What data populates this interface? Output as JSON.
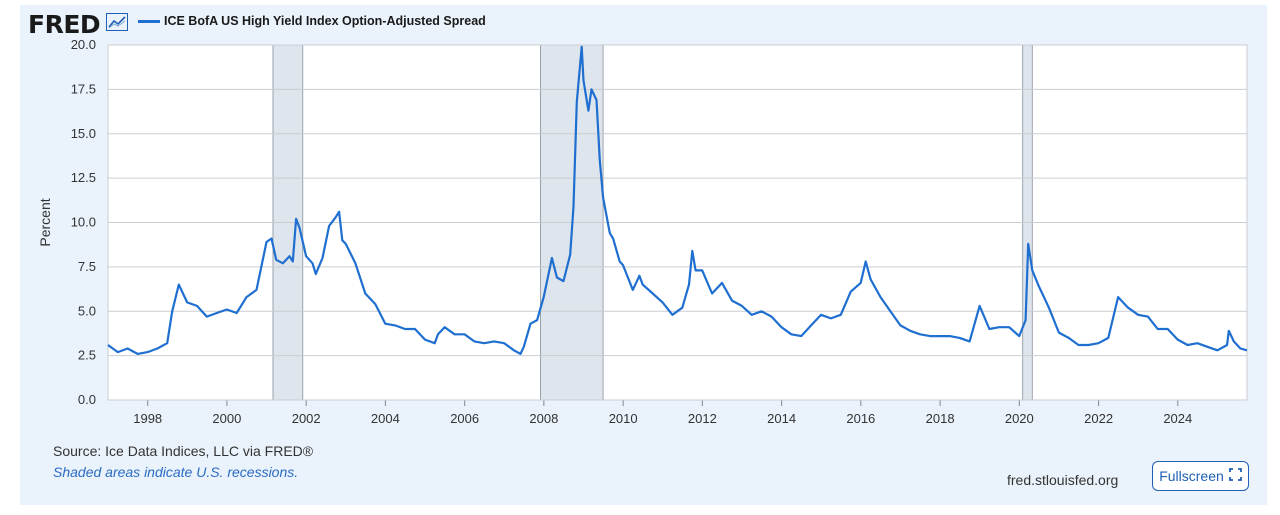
{
  "header": {
    "logo_text": "FRED",
    "logo_icon": "line-chart-icon",
    "series_title": "ICE BofA US High Yield Index Option-Adjusted Spread"
  },
  "footer": {
    "source": "Source: Ice Data Indices, LLC via FRED®",
    "recessions_note": "Shaded areas indicate U.S. recessions.",
    "site": "fred.stlouisfed.org",
    "fullscreen_label": "Fullscreen",
    "fullscreen_icon": "expand-icon"
  },
  "colors": {
    "line": "#1f6fd1",
    "recession": "#dfe5ec",
    "panel": "#eaf2fb",
    "link": "#2a6cc4"
  },
  "chart_data": {
    "type": "line",
    "title": "ICE BofA US High Yield Index Option-Adjusted Spread",
    "ylabel": "Percent",
    "xlabel": "",
    "ylim": [
      0,
      20
    ],
    "xlim": [
      "1996-12-31",
      "2025-09-30"
    ],
    "yticks": [
      "0.0",
      "2.5",
      "5.0",
      "7.5",
      "10.0",
      "12.5",
      "15.0",
      "17.5",
      "20.0"
    ],
    "xticks": [
      "1998",
      "2000",
      "2002",
      "2004",
      "2006",
      "2008",
      "2010",
      "2012",
      "2014",
      "2016",
      "2018",
      "2020",
      "2022",
      "2024"
    ],
    "grid": true,
    "legend": "top-left",
    "recessions": [
      {
        "start": "2001-03-01",
        "end": "2001-11-30"
      },
      {
        "start": "2007-12-01",
        "end": "2009-06-30"
      },
      {
        "start": "2020-02-01",
        "end": "2020-04-30"
      }
    ],
    "series": [
      {
        "name": "ICE BofA US High Yield Index Option-Adjusted Spread",
        "points": [
          [
            "1996-12-31",
            3.1
          ],
          [
            "1997-03-31",
            2.7
          ],
          [
            "1997-06-30",
            2.9
          ],
          [
            "1997-09-30",
            2.6
          ],
          [
            "1997-12-31",
            2.7
          ],
          [
            "1998-03-31",
            2.9
          ],
          [
            "1998-06-30",
            3.2
          ],
          [
            "1998-08-15",
            5.0
          ],
          [
            "1998-10-15",
            6.5
          ],
          [
            "1998-12-31",
            5.5
          ],
          [
            "1999-03-31",
            5.3
          ],
          [
            "1999-06-30",
            4.7
          ],
          [
            "1999-09-30",
            4.9
          ],
          [
            "1999-12-31",
            5.1
          ],
          [
            "2000-03-31",
            4.9
          ],
          [
            "2000-06-30",
            5.8
          ],
          [
            "2000-09-30",
            6.2
          ],
          [
            "2000-12-31",
            8.9
          ],
          [
            "2001-02-15",
            9.1
          ],
          [
            "2001-03-31",
            7.9
          ],
          [
            "2001-05-31",
            7.7
          ],
          [
            "2001-07-31",
            8.1
          ],
          [
            "2001-08-31",
            7.8
          ],
          [
            "2001-09-30",
            10.2
          ],
          [
            "2001-10-31",
            9.7
          ],
          [
            "2001-12-31",
            8.1
          ],
          [
            "2002-02-28",
            7.7
          ],
          [
            "2002-03-31",
            7.1
          ],
          [
            "2002-05-31",
            8.0
          ],
          [
            "2002-07-31",
            9.8
          ],
          [
            "2002-09-30",
            10.3
          ],
          [
            "2002-10-31",
            10.6
          ],
          [
            "2002-11-30",
            9.0
          ],
          [
            "2002-12-31",
            8.8
          ],
          [
            "2003-03-31",
            7.7
          ],
          [
            "2003-06-30",
            6.0
          ],
          [
            "2003-09-30",
            5.4
          ],
          [
            "2003-12-31",
            4.3
          ],
          [
            "2004-03-31",
            4.2
          ],
          [
            "2004-06-30",
            4.0
          ],
          [
            "2004-09-30",
            4.0
          ],
          [
            "2004-12-31",
            3.4
          ],
          [
            "2005-03-31",
            3.2
          ],
          [
            "2005-04-30",
            3.7
          ],
          [
            "2005-06-30",
            4.1
          ],
          [
            "2005-09-30",
            3.7
          ],
          [
            "2005-12-31",
            3.7
          ],
          [
            "2006-03-31",
            3.3
          ],
          [
            "2006-06-30",
            3.2
          ],
          [
            "2006-09-30",
            3.3
          ],
          [
            "2006-12-31",
            3.2
          ],
          [
            "2007-03-31",
            2.8
          ],
          [
            "2007-05-31",
            2.6
          ],
          [
            "2007-06-30",
            3.0
          ],
          [
            "2007-08-31",
            4.3
          ],
          [
            "2007-10-31",
            4.5
          ],
          [
            "2007-12-31",
            5.8
          ],
          [
            "2008-03-15",
            8.0
          ],
          [
            "2008-04-30",
            6.9
          ],
          [
            "2008-06-30",
            6.7
          ],
          [
            "2008-08-31",
            8.2
          ],
          [
            "2008-09-30",
            10.9
          ],
          [
            "2008-10-31",
            16.8
          ],
          [
            "2008-12-15",
            19.9
          ],
          [
            "2008-12-31",
            18.0
          ],
          [
            "2009-02-15",
            16.3
          ],
          [
            "2009-03-15",
            17.5
          ],
          [
            "2009-04-30",
            16.9
          ],
          [
            "2009-05-31",
            13.5
          ],
          [
            "2009-06-30",
            11.4
          ],
          [
            "2009-08-31",
            9.4
          ],
          [
            "2009-09-30",
            9.1
          ],
          [
            "2009-11-30",
            7.8
          ],
          [
            "2009-12-31",
            7.6
          ],
          [
            "2010-03-31",
            6.2
          ],
          [
            "2010-05-31",
            7.0
          ],
          [
            "2010-06-30",
            6.5
          ],
          [
            "2010-09-30",
            6.0
          ],
          [
            "2010-12-31",
            5.5
          ],
          [
            "2011-03-31",
            4.8
          ],
          [
            "2011-06-30",
            5.2
          ],
          [
            "2011-08-31",
            6.5
          ],
          [
            "2011-09-30",
            8.4
          ],
          [
            "2011-10-31",
            7.3
          ],
          [
            "2011-12-31",
            7.3
          ],
          [
            "2012-03-31",
            6.0
          ],
          [
            "2012-06-30",
            6.6
          ],
          [
            "2012-09-30",
            5.6
          ],
          [
            "2012-12-31",
            5.3
          ],
          [
            "2013-03-31",
            4.8
          ],
          [
            "2013-06-30",
            5.0
          ],
          [
            "2013-09-30",
            4.7
          ],
          [
            "2013-12-31",
            4.1
          ],
          [
            "2014-03-31",
            3.7
          ],
          [
            "2014-06-30",
            3.6
          ],
          [
            "2014-09-30",
            4.2
          ],
          [
            "2014-12-31",
            4.8
          ],
          [
            "2015-03-31",
            4.6
          ],
          [
            "2015-06-30",
            4.8
          ],
          [
            "2015-09-30",
            6.1
          ],
          [
            "2015-12-31",
            6.6
          ],
          [
            "2016-02-15",
            7.8
          ],
          [
            "2016-03-31",
            6.8
          ],
          [
            "2016-06-30",
            5.8
          ],
          [
            "2016-09-30",
            5.0
          ],
          [
            "2016-12-31",
            4.2
          ],
          [
            "2017-03-31",
            3.9
          ],
          [
            "2017-06-30",
            3.7
          ],
          [
            "2017-09-30",
            3.6
          ],
          [
            "2017-12-31",
            3.6
          ],
          [
            "2018-03-31",
            3.6
          ],
          [
            "2018-06-30",
            3.5
          ],
          [
            "2018-09-30",
            3.3
          ],
          [
            "2018-12-31",
            5.3
          ],
          [
            "2019-03-31",
            4.0
          ],
          [
            "2019-06-30",
            4.1
          ],
          [
            "2019-09-30",
            4.1
          ],
          [
            "2019-12-31",
            3.6
          ],
          [
            "2020-02-28",
            4.5
          ],
          [
            "2020-03-23",
            8.8
          ],
          [
            "2020-04-30",
            7.3
          ],
          [
            "2020-06-30",
            6.4
          ],
          [
            "2020-09-30",
            5.2
          ],
          [
            "2020-12-31",
            3.8
          ],
          [
            "2021-03-31",
            3.5
          ],
          [
            "2021-06-30",
            3.1
          ],
          [
            "2021-09-30",
            3.1
          ],
          [
            "2021-12-31",
            3.2
          ],
          [
            "2022-03-31",
            3.5
          ],
          [
            "2022-06-30",
            5.8
          ],
          [
            "2022-09-30",
            5.2
          ],
          [
            "2022-12-31",
            4.8
          ],
          [
            "2023-03-31",
            4.7
          ],
          [
            "2023-06-30",
            4.0
          ],
          [
            "2023-09-30",
            4.0
          ],
          [
            "2023-12-31",
            3.4
          ],
          [
            "2024-03-31",
            3.1
          ],
          [
            "2024-06-30",
            3.2
          ],
          [
            "2024-09-30",
            3.0
          ],
          [
            "2024-12-31",
            2.8
          ],
          [
            "2025-03-31",
            3.1
          ],
          [
            "2025-04-15",
            3.9
          ],
          [
            "2025-05-31",
            3.3
          ],
          [
            "2025-07-31",
            2.9
          ],
          [
            "2025-09-30",
            2.8
          ]
        ]
      }
    ]
  }
}
